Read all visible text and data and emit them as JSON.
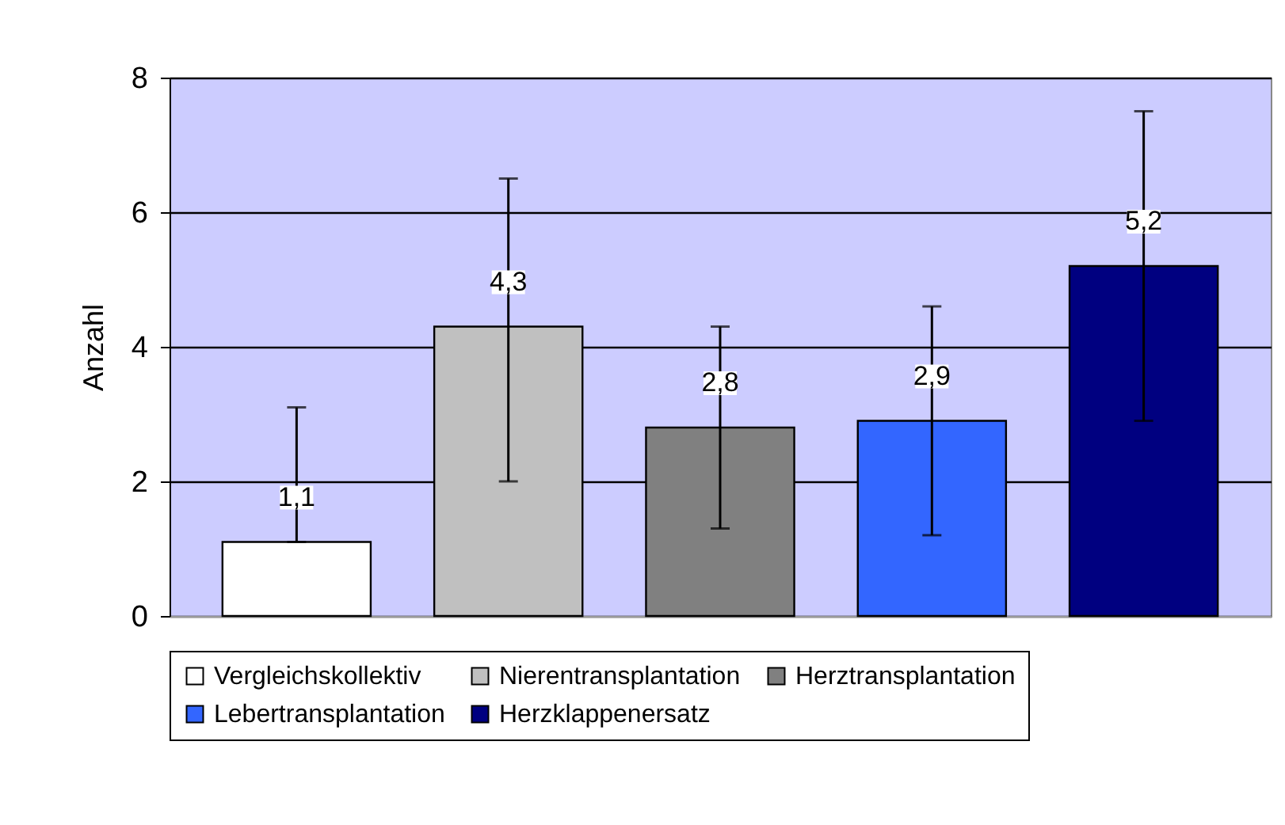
{
  "chart_data": {
    "type": "bar",
    "ylabel": "Anzahl",
    "categories": [
      null,
      null,
      null,
      null,
      null
    ],
    "series": [
      {
        "name": "Vergleichskollektiv",
        "color": "#ffffff",
        "values": [
          1.1,
          null,
          null,
          null,
          null
        ],
        "value_labels": [
          "1,1",
          null,
          null,
          null,
          null
        ],
        "errors": [
          [
            1.1,
            3.1
          ],
          null,
          null,
          null,
          null
        ]
      },
      {
        "name": "Nierentransplantation",
        "color": "#c0c0c0",
        "values": [
          null,
          4.3,
          null,
          null,
          null
        ],
        "value_labels": [
          null,
          "4,3",
          null,
          null,
          null
        ],
        "errors": [
          null,
          [
            2.0,
            6.5
          ],
          null,
          null,
          null
        ]
      },
      {
        "name": "Herztransplantation",
        "color": "#808080",
        "values": [
          null,
          null,
          2.8,
          null,
          null
        ],
        "value_labels": [
          null,
          null,
          "2,8",
          null,
          null
        ],
        "errors": [
          null,
          null,
          [
            1.3,
            4.3
          ],
          null,
          null
        ]
      },
      {
        "name": "Lebertransplantation",
        "color": "#3366ff",
        "values": [
          null,
          null,
          null,
          2.9,
          null
        ],
        "value_labels": [
          null,
          null,
          null,
          "2,9",
          null
        ],
        "errors": [
          null,
          null,
          null,
          [
            1.2,
            4.6
          ],
          null
        ]
      },
      {
        "name": "Herzklappenersatz",
        "color": "#000080",
        "values": [
          null,
          null,
          null,
          null,
          5.2
        ],
        "value_labels": [
          null,
          null,
          null,
          null,
          "5,2"
        ],
        "errors": [
          null,
          null,
          null,
          null,
          [
            2.9,
            7.5
          ]
        ]
      }
    ],
    "ylim": [
      0,
      8
    ],
    "yticks": [
      0,
      2,
      4,
      6,
      8
    ],
    "grid": "y",
    "legend": "bottom",
    "tick_labels": "y"
  }
}
